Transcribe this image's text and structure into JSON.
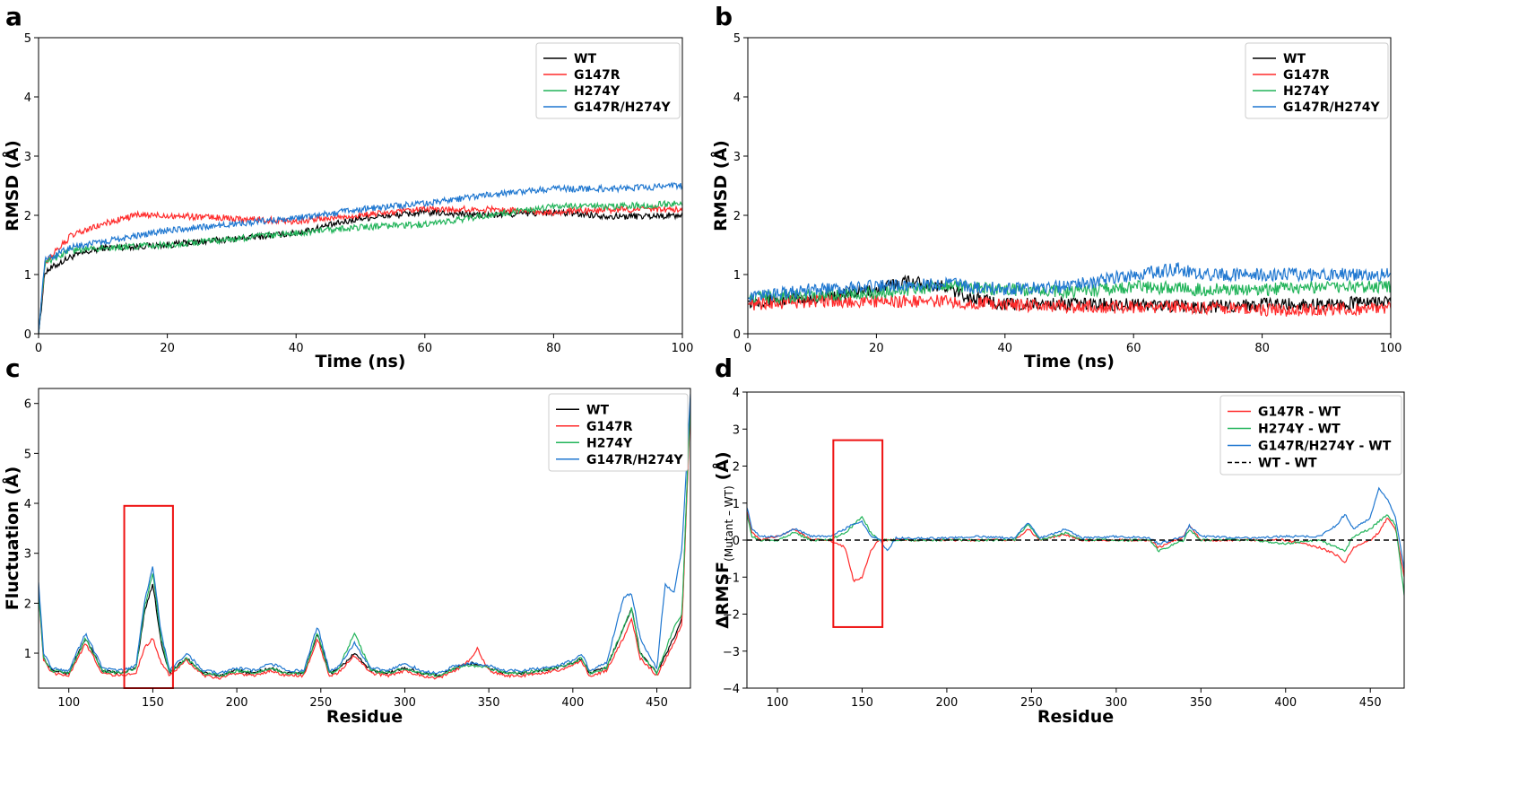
{
  "colors": {
    "WT": "#000000",
    "G147R": "#ff2a2a",
    "H274Y": "#22b45a",
    "G147R/H274Y": "#1f77d0",
    "highlight": "#ee1111"
  },
  "chart_data": [
    {
      "panel": "a",
      "type": "line",
      "xlabel": "Time (ns)",
      "ylabel": "RMSD (Å)",
      "xlim": [
        0,
        100
      ],
      "ylim": [
        0,
        5
      ],
      "xticks": [
        0,
        20,
        40,
        60,
        80,
        100
      ],
      "yticks": [
        0,
        1,
        2,
        3,
        4,
        5
      ],
      "legend_position": "top-right",
      "series": [
        {
          "name": "WT",
          "color": "#000000",
          "x": [
            0,
            1,
            5,
            10,
            20,
            30,
            40,
            50,
            60,
            70,
            80,
            90,
            100
          ],
          "y": [
            0,
            1.05,
            1.3,
            1.45,
            1.5,
            1.6,
            1.7,
            1.95,
            2.05,
            2.0,
            2.05,
            1.98,
            2.0
          ]
        },
        {
          "name": "G147R",
          "color": "#ff2a2a",
          "x": [
            0,
            1,
            5,
            10,
            15,
            20,
            30,
            40,
            50,
            60,
            70,
            80,
            90,
            100
          ],
          "y": [
            0,
            1.2,
            1.65,
            1.85,
            2.0,
            2.0,
            1.95,
            1.9,
            2.0,
            2.1,
            2.1,
            2.05,
            2.1,
            2.1
          ]
        },
        {
          "name": "H274Y",
          "color": "#22b45a",
          "x": [
            0,
            1,
            5,
            10,
            20,
            30,
            40,
            50,
            60,
            70,
            80,
            90,
            100
          ],
          "y": [
            0,
            1.2,
            1.4,
            1.45,
            1.5,
            1.6,
            1.7,
            1.8,
            1.85,
            2.0,
            2.15,
            2.15,
            2.2
          ]
        },
        {
          "name": "G147R/H274Y",
          "color": "#1f77d0",
          "x": [
            0,
            1,
            5,
            10,
            20,
            30,
            40,
            50,
            60,
            70,
            80,
            90,
            100
          ],
          "y": [
            0,
            1.25,
            1.45,
            1.55,
            1.75,
            1.85,
            1.95,
            2.1,
            2.2,
            2.35,
            2.45,
            2.45,
            2.5
          ]
        }
      ]
    },
    {
      "panel": "b",
      "type": "line",
      "xlabel": "Time (ns)",
      "ylabel": "RMSD (Å)",
      "xlim": [
        0,
        100
      ],
      "ylim": [
        0,
        5
      ],
      "xticks": [
        0,
        20,
        40,
        60,
        80,
        100
      ],
      "yticks": [
        0,
        1,
        2,
        3,
        4,
        5
      ],
      "legend_position": "top-right",
      "series": [
        {
          "name": "WT",
          "color": "#000000",
          "x": [
            0,
            10,
            20,
            25,
            30,
            35,
            40,
            50,
            60,
            70,
            80,
            90,
            100
          ],
          "y": [
            0.55,
            0.6,
            0.75,
            0.9,
            0.8,
            0.6,
            0.5,
            0.5,
            0.5,
            0.45,
            0.5,
            0.5,
            0.55
          ]
        },
        {
          "name": "G147R",
          "color": "#ff2a2a",
          "x": [
            0,
            10,
            20,
            30,
            40,
            50,
            60,
            70,
            80,
            90,
            100
          ],
          "y": [
            0.5,
            0.55,
            0.55,
            0.55,
            0.5,
            0.45,
            0.45,
            0.45,
            0.4,
            0.4,
            0.45
          ]
        },
        {
          "name": "H274Y",
          "color": "#22b45a",
          "x": [
            0,
            10,
            20,
            30,
            40,
            50,
            60,
            70,
            80,
            90,
            100
          ],
          "y": [
            0.6,
            0.65,
            0.7,
            0.8,
            0.75,
            0.7,
            0.8,
            0.75,
            0.75,
            0.8,
            0.8
          ]
        },
        {
          "name": "G147R/H274Y",
          "color": "#1f77d0",
          "x": [
            0,
            10,
            20,
            30,
            40,
            50,
            55,
            60,
            67,
            70,
            80,
            90,
            100
          ],
          "y": [
            0.6,
            0.75,
            0.8,
            0.85,
            0.75,
            0.8,
            0.9,
            1.0,
            1.1,
            1.0,
            1.0,
            1.0,
            1.0
          ]
        }
      ]
    },
    {
      "panel": "c",
      "type": "line",
      "xlabel": "Residue",
      "ylabel": "Fluctuation (Å)",
      "xlim": [
        82,
        470
      ],
      "ylim": [
        0.3,
        6.3
      ],
      "xticks": [
        100,
        150,
        200,
        250,
        300,
        350,
        400,
        450
      ],
      "yticks": [
        1,
        2,
        3,
        4,
        5,
        6
      ],
      "legend_position": "top-right",
      "highlight_box": {
        "x": [
          133,
          162
        ],
        "y": [
          0.3,
          3.95
        ]
      },
      "series": [
        {
          "name": "WT",
          "color": "#000000",
          "x": [
            82,
            85,
            90,
            100,
            110,
            120,
            130,
            140,
            145,
            150,
            155,
            160,
            170,
            180,
            190,
            200,
            210,
            220,
            230,
            240,
            248,
            255,
            260,
            270,
            280,
            290,
            300,
            310,
            320,
            330,
            340,
            350,
            360,
            370,
            380,
            390,
            400,
            405,
            410,
            420,
            430,
            435,
            440,
            450,
            460,
            465,
            470
          ],
          "y": [
            2.3,
            0.9,
            0.65,
            0.6,
            1.3,
            0.65,
            0.6,
            0.7,
            1.8,
            2.4,
            1.2,
            0.6,
            0.9,
            0.6,
            0.55,
            0.65,
            0.6,
            0.7,
            0.6,
            0.6,
            1.4,
            0.6,
            0.65,
            1.0,
            0.65,
            0.6,
            0.7,
            0.6,
            0.55,
            0.7,
            0.8,
            0.7,
            0.6,
            0.6,
            0.65,
            0.7,
            0.8,
            0.9,
            0.6,
            0.7,
            1.5,
            1.9,
            1.0,
            0.6,
            1.3,
            1.7,
            6.1
          ]
        },
        {
          "name": "G147R",
          "color": "#ff2a2a",
          "x": [
            82,
            85,
            90,
            100,
            110,
            120,
            130,
            140,
            145,
            150,
            155,
            160,
            170,
            180,
            190,
            200,
            210,
            220,
            230,
            240,
            248,
            255,
            260,
            270,
            280,
            290,
            300,
            310,
            320,
            330,
            340,
            343,
            350,
            360,
            370,
            380,
            390,
            400,
            405,
            410,
            420,
            430,
            435,
            440,
            450,
            460,
            465,
            470
          ],
          "y": [
            2.2,
            0.85,
            0.6,
            0.55,
            1.2,
            0.6,
            0.55,
            0.6,
            1.1,
            1.3,
            0.8,
            0.55,
            0.85,
            0.55,
            0.5,
            0.6,
            0.55,
            0.65,
            0.55,
            0.55,
            1.3,
            0.55,
            0.6,
            0.95,
            0.6,
            0.55,
            0.65,
            0.55,
            0.5,
            0.65,
            0.9,
            1.1,
            0.65,
            0.55,
            0.55,
            0.6,
            0.65,
            0.75,
            0.85,
            0.55,
            0.65,
            1.3,
            1.7,
            0.9,
            0.55,
            1.2,
            1.6,
            6.0
          ]
        },
        {
          "name": "H274Y",
          "color": "#22b45a",
          "x": [
            82,
            85,
            90,
            100,
            110,
            120,
            130,
            140,
            145,
            150,
            155,
            160,
            170,
            180,
            190,
            200,
            210,
            220,
            230,
            240,
            248,
            255,
            260,
            270,
            280,
            290,
            300,
            310,
            320,
            330,
            340,
            350,
            360,
            370,
            380,
            390,
            400,
            405,
            410,
            420,
            430,
            435,
            440,
            450,
            460,
            465,
            470
          ],
          "y": [
            2.2,
            0.9,
            0.65,
            0.6,
            1.3,
            0.65,
            0.6,
            0.7,
            1.9,
            2.6,
            1.3,
            0.6,
            0.9,
            0.6,
            0.55,
            0.65,
            0.6,
            0.7,
            0.6,
            0.6,
            1.4,
            0.6,
            0.65,
            1.4,
            0.65,
            0.6,
            0.7,
            0.6,
            0.55,
            0.7,
            0.75,
            0.7,
            0.6,
            0.6,
            0.65,
            0.7,
            0.8,
            0.9,
            0.6,
            0.7,
            1.5,
            1.9,
            1.0,
            0.6,
            1.5,
            1.8,
            6.1
          ]
        },
        {
          "name": "G147R/H274Y",
          "color": "#1f77d0",
          "x": [
            82,
            85,
            90,
            100,
            110,
            120,
            130,
            140,
            145,
            150,
            155,
            160,
            170,
            180,
            190,
            200,
            210,
            220,
            230,
            240,
            248,
            255,
            260,
            270,
            280,
            290,
            300,
            310,
            320,
            330,
            340,
            350,
            360,
            370,
            380,
            390,
            400,
            405,
            410,
            420,
            430,
            435,
            440,
            450,
            455,
            460,
            465,
            470
          ],
          "y": [
            2.4,
            1.0,
            0.7,
            0.65,
            1.4,
            0.7,
            0.65,
            0.75,
            2.0,
            2.75,
            1.4,
            0.65,
            1.0,
            0.65,
            0.6,
            0.7,
            0.65,
            0.8,
            0.65,
            0.65,
            1.55,
            0.65,
            0.7,
            1.2,
            0.7,
            0.65,
            0.8,
            0.65,
            0.6,
            0.75,
            0.8,
            0.75,
            0.65,
            0.65,
            0.7,
            0.75,
            0.85,
            1.0,
            0.65,
            0.8,
            2.1,
            2.2,
            1.3,
            0.7,
            2.4,
            2.2,
            3.1,
            6.2
          ]
        }
      ]
    },
    {
      "panel": "d",
      "type": "line",
      "xlabel": "Residue",
      "ylabel": "ΔRMSF",
      "ylabel_subscript": "(Mutant – WT)",
      "ylabel_unit": "(Å)",
      "xlim": [
        82,
        470
      ],
      "ylim": [
        -4,
        4
      ],
      "xticks": [
        100,
        150,
        200,
        250,
        300,
        350,
        400,
        450
      ],
      "yticks": [
        -4,
        -3,
        -2,
        -1,
        0,
        1,
        2,
        3,
        4
      ],
      "legend_position": "top-right",
      "highlight_box": {
        "x": [
          133,
          162
        ],
        "y": [
          -2.35,
          2.7
        ]
      },
      "series": [
        {
          "name": "G147R - WT",
          "color": "#ff2a2a",
          "x": [
            82,
            85,
            90,
            100,
            110,
            120,
            130,
            140,
            145,
            150,
            155,
            160,
            170,
            180,
            200,
            220,
            240,
            248,
            255,
            270,
            280,
            300,
            320,
            325,
            340,
            343,
            350,
            380,
            400,
            420,
            430,
            435,
            440,
            450,
            455,
            460,
            465,
            470
          ],
          "y": [
            0.8,
            0.2,
            0.0,
            0.1,
            0.3,
            0.0,
            0.0,
            -0.2,
            -1.1,
            -1.0,
            -0.3,
            0.0,
            0.0,
            0.0,
            0.0,
            0.0,
            0.0,
            0.3,
            0.0,
            0.15,
            0.0,
            0.0,
            0.0,
            -0.2,
            0.1,
            0.4,
            0.0,
            0.0,
            0.0,
            -0.2,
            -0.4,
            -0.6,
            -0.2,
            0.0,
            0.2,
            0.6,
            0.3,
            -1.0
          ]
        },
        {
          "name": "H274Y - WT",
          "color": "#22b45a",
          "x": [
            82,
            85,
            90,
            100,
            110,
            120,
            130,
            140,
            145,
            150,
            155,
            160,
            170,
            180,
            200,
            220,
            240,
            248,
            255,
            270,
            280,
            300,
            320,
            325,
            340,
            343,
            350,
            380,
            400,
            420,
            430,
            435,
            440,
            450,
            455,
            460,
            465,
            470
          ],
          "y": [
            0.7,
            0.1,
            0.0,
            0.0,
            0.2,
            0.0,
            0.0,
            0.2,
            0.4,
            0.65,
            0.2,
            0.0,
            0.0,
            0.0,
            0.0,
            0.0,
            0.0,
            0.45,
            0.0,
            0.2,
            0.0,
            0.0,
            0.0,
            -0.3,
            0.0,
            0.3,
            0.0,
            0.0,
            -0.1,
            0.0,
            -0.2,
            -0.3,
            0.1,
            0.3,
            0.5,
            0.7,
            0.4,
            -1.5
          ]
        },
        {
          "name": "G147R/H274Y - WT",
          "color": "#1f77d0",
          "x": [
            82,
            85,
            90,
            100,
            110,
            120,
            130,
            140,
            145,
            150,
            155,
            160,
            165,
            170,
            180,
            200,
            220,
            240,
            248,
            255,
            270,
            280,
            300,
            320,
            325,
            340,
            343,
            350,
            380,
            400,
            420,
            430,
            435,
            440,
            450,
            455,
            460,
            465,
            470
          ],
          "y": [
            0.9,
            0.3,
            0.1,
            0.1,
            0.3,
            0.1,
            0.1,
            0.3,
            0.45,
            0.5,
            0.1,
            0.05,
            -0.3,
            0.05,
            0.05,
            0.05,
            0.1,
            0.05,
            0.5,
            0.05,
            0.3,
            0.05,
            0.1,
            0.05,
            -0.1,
            0.1,
            0.4,
            0.1,
            0.05,
            0.1,
            0.1,
            0.4,
            0.7,
            0.3,
            0.6,
            1.4,
            1.1,
            0.6,
            -0.8
          ]
        },
        {
          "name": "WT - WT",
          "color": "#000000",
          "dashed": true,
          "x": [
            82,
            470
          ],
          "y": [
            0,
            0
          ]
        }
      ]
    }
  ]
}
